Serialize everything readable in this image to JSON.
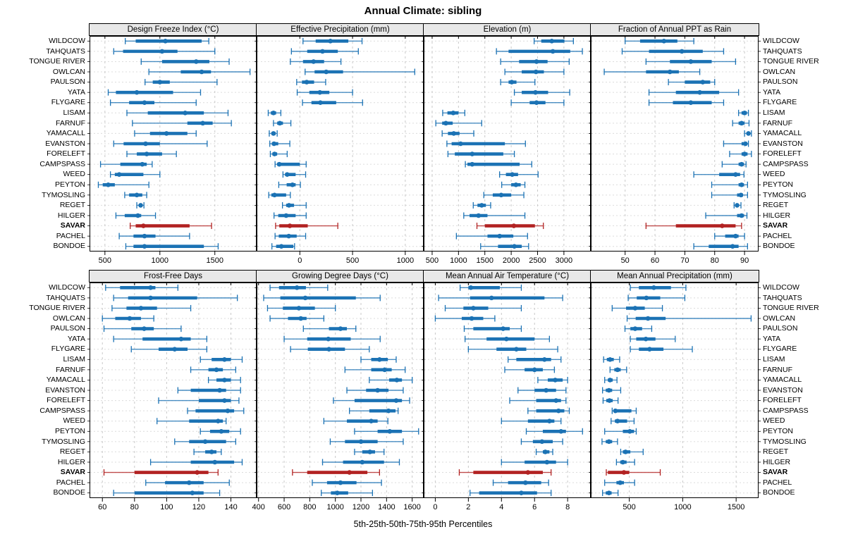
{
  "title": "Annual Climate: sibling",
  "footer": "5th-25th-50th-75th-95th Percentiles",
  "percentiles": [
    5,
    25,
    50,
    75,
    95
  ],
  "highlight_site": "SAVAR",
  "colors": {
    "series": "#1b72b4",
    "highlight": "#b22222",
    "grid": "#c9c9c9",
    "row_guide": "#dcdcdc",
    "header_bg": "#e8e8e8",
    "border": "#000000"
  },
  "sites": [
    "WILDCOW",
    "TAHQUATS",
    "TONGUE RIVER",
    "OWLCAN",
    "PAULSON",
    "YATA",
    "FLYGARE",
    "LISAM",
    "FARNUF",
    "YAMACALL",
    "EVANSTON",
    "FORELEFT",
    "CAMPSPASS",
    "WEED",
    "PEYTON",
    "TYMOSLING",
    "REGET",
    "HILGER",
    "SAVAR",
    "PACHEL",
    "BONDOE"
  ],
  "chart_data": [
    {
      "type": "interval-dotplot",
      "grid_row": "top",
      "title": "Design Freeze Index (°C)",
      "xlim": [
        360,
        1880
      ],
      "ticks": [
        500,
        1000,
        1500
      ],
      "values": [
        [
          685,
          780,
          1050,
          1380,
          1445
        ],
        [
          580,
          665,
          1020,
          1160,
          1500
        ],
        [
          830,
          1020,
          1330,
          1450,
          1630
        ],
        [
          900,
          1190,
          1380,
          1465,
          1820
        ],
        [
          865,
          935,
          1000,
          1090,
          1520
        ],
        [
          530,
          600,
          790,
          1120,
          1370
        ],
        [
          550,
          720,
          860,
          950,
          1330
        ],
        [
          700,
          890,
          1230,
          1400,
          1620
        ],
        [
          750,
          1250,
          1390,
          1480,
          1650
        ],
        [
          770,
          910,
          1060,
          1250,
          1330
        ],
        [
          580,
          670,
          870,
          1000,
          1430
        ],
        [
          700,
          790,
          880,
          1020,
          1150
        ],
        [
          460,
          640,
          840,
          880,
          930
        ],
        [
          550,
          590,
          630,
          850,
          1000
        ],
        [
          440,
          480,
          530,
          590,
          900
        ],
        [
          680,
          720,
          790,
          840,
          880
        ],
        [
          790,
          810,
          825,
          840,
          855
        ],
        [
          600,
          680,
          800,
          830,
          960
        ],
        [
          730,
          780,
          850,
          1270,
          1470
        ],
        [
          630,
          760,
          860,
          960,
          1270
        ],
        [
          690,
          760,
          860,
          1400,
          1530
        ]
      ]
    },
    {
      "type": "interval-dotplot",
      "grid_row": "top",
      "title": "Effective Precipitation (mm)",
      "xlim": [
        -410,
        1175
      ],
      "ticks": [
        0,
        500,
        1000
      ],
      "values": [
        [
          30,
          150,
          290,
          460,
          590
        ],
        [
          -80,
          70,
          215,
          360,
          555
        ],
        [
          -90,
          30,
          130,
          230,
          390
        ],
        [
          50,
          140,
          250,
          410,
          1090
        ],
        [
          -30,
          20,
          65,
          135,
          245
        ],
        [
          -25,
          90,
          190,
          280,
          500
        ],
        [
          25,
          110,
          195,
          345,
          595
        ],
        [
          -300,
          -275,
          -250,
          -225,
          -180
        ],
        [
          -250,
          -215,
          -190,
          -160,
          -85
        ],
        [
          -290,
          -270,
          -250,
          -230,
          -215
        ],
        [
          -285,
          -265,
          -245,
          -205,
          -95
        ],
        [
          -280,
          -260,
          -240,
          -215,
          -120
        ],
        [
          -235,
          -215,
          -195,
          0,
          60
        ],
        [
          -160,
          -140,
          -120,
          -40,
          55
        ],
        [
          -200,
          -125,
          -70,
          -40,
          5
        ],
        [
          -295,
          -270,
          -240,
          -130,
          -90
        ],
        [
          -165,
          -130,
          -103,
          -55,
          60
        ],
        [
          -245,
          -205,
          -130,
          -40,
          60
        ],
        [
          -230,
          -195,
          -95,
          75,
          360
        ],
        [
          -235,
          -200,
          -105,
          -30,
          55
        ],
        [
          -265,
          -225,
          -175,
          -62,
          -50
        ]
      ]
    },
    {
      "type": "interval-dotplot",
      "grid_row": "top",
      "title": "Elevation (m)",
      "xlim": [
        340,
        3510
      ],
      "ticks": [
        500,
        1000,
        1500,
        2000,
        2500,
        3000
      ],
      "values": [
        [
          2435,
          2570,
          2770,
          3010,
          3180
        ],
        [
          1720,
          1950,
          2790,
          3120,
          3350
        ],
        [
          1800,
          2150,
          2480,
          2690,
          3100
        ],
        [
          1880,
          2200,
          2470,
          2620,
          3000
        ],
        [
          1800,
          1950,
          2010,
          2100,
          2450
        ],
        [
          2060,
          2200,
          2460,
          2700,
          3110
        ],
        [
          2000,
          2350,
          2480,
          2650,
          3000
        ],
        [
          700,
          790,
          900,
          1000,
          1120
        ],
        [
          570,
          690,
          760,
          890,
          1440
        ],
        [
          690,
          800,
          910,
          1020,
          1290
        ],
        [
          780,
          870,
          1040,
          1880,
          2270
        ],
        [
          800,
          930,
          1260,
          1850,
          2060
        ],
        [
          1130,
          1170,
          1260,
          2160,
          2390
        ],
        [
          1780,
          1900,
          2020,
          2130,
          2510
        ],
        [
          1820,
          2000,
          2090,
          2180,
          2260
        ],
        [
          1480,
          1650,
          1810,
          2000,
          2240
        ],
        [
          1280,
          1360,
          1440,
          1520,
          1610
        ],
        [
          1100,
          1210,
          1380,
          1550,
          2260
        ],
        [
          1350,
          1500,
          2050,
          2450,
          2610
        ],
        [
          960,
          1550,
          1780,
          2040,
          2310
        ],
        [
          1420,
          1750,
          2060,
          2200,
          2330
        ]
      ]
    },
    {
      "type": "interval-dotplot",
      "grid_row": "top",
      "title": "Fraction of Annual PPT as Rain",
      "xlim": [
        38.5,
        94.7
      ],
      "ticks": [
        50,
        60,
        70,
        80,
        90
      ],
      "values": [
        [
          50,
          55,
          63,
          67.5,
          73
        ],
        [
          49,
          58,
          69,
          76,
          83
        ],
        [
          57,
          65,
          72,
          79,
          87
        ],
        [
          43,
          57,
          65,
          68,
          75
        ],
        [
          64.5,
          70,
          76,
          78.5,
          80
        ],
        [
          58,
          67,
          75,
          81.5,
          88
        ],
        [
          58,
          66,
          72,
          79,
          83
        ],
        [
          88,
          89,
          90,
          90.8,
          91.3
        ],
        [
          86,
          88,
          89,
          90,
          91.5
        ],
        [
          90,
          90.7,
          91.3,
          91.8,
          92.3
        ],
        [
          83,
          89,
          90.3,
          90.8,
          91.3
        ],
        [
          85,
          89,
          90,
          91,
          92.3
        ],
        [
          82.5,
          88,
          89,
          89.8,
          90.5
        ],
        [
          73,
          81.5,
          87,
          88.5,
          89.8
        ],
        [
          79,
          88,
          89,
          89.8,
          91
        ],
        [
          79,
          87.5,
          88.8,
          89.5,
          91
        ],
        [
          86.5,
          87,
          87.5,
          88,
          88.8
        ],
        [
          77,
          87.5,
          89,
          89.8,
          90.8
        ],
        [
          57,
          67,
          82.5,
          87,
          89
        ],
        [
          80,
          83.5,
          87,
          88,
          90
        ],
        [
          73,
          78,
          86,
          88,
          91
        ]
      ]
    },
    {
      "type": "interval-dotplot",
      "grid_row": "bottom",
      "title": "Frost-Free Days",
      "xlim": [
        52,
        156
      ],
      "ticks": [
        60,
        80,
        100,
        120,
        140
      ],
      "values": [
        [
          62,
          71,
          90,
          93,
          107
        ],
        [
          67,
          76,
          90,
          119,
          144
        ],
        [
          66,
          75,
          84,
          94,
          115
        ],
        [
          60,
          68,
          77,
          84,
          92
        ],
        [
          61,
          78,
          86,
          92,
          109
        ],
        [
          67,
          85,
          109,
          115,
          125
        ],
        [
          78,
          95,
          105,
          113,
          125
        ],
        [
          121,
          128,
          136,
          140,
          147
        ],
        [
          115,
          126,
          131,
          135,
          143
        ],
        [
          126,
          131,
          136,
          140,
          146
        ],
        [
          107,
          115,
          133,
          137,
          146
        ],
        [
          95,
          120,
          136,
          140,
          145
        ],
        [
          113,
          118,
          138,
          142,
          148
        ],
        [
          94,
          114,
          132,
          135,
          137
        ],
        [
          121,
          127,
          134,
          139,
          146
        ],
        [
          105,
          114,
          124,
          137,
          143
        ],
        [
          117,
          124,
          128,
          131,
          134
        ],
        [
          90,
          115,
          130,
          142,
          147
        ],
        [
          61,
          80,
          119,
          126,
          132
        ],
        [
          87,
          99,
          114,
          123,
          139
        ],
        [
          67,
          80,
          116,
          123,
          133
        ]
      ]
    },
    {
      "type": "interval-dotplot",
      "grid_row": "bottom",
      "title": "Growing Degree Days (°C)",
      "xlim": [
        385,
        1690
      ],
      "ticks": [
        400,
        600,
        800,
        1000,
        1200,
        1400,
        1600
      ],
      "values": [
        [
          490,
          560,
          700,
          770,
          940
        ],
        [
          440,
          570,
          765,
          1160,
          1350
        ],
        [
          470,
          590,
          715,
          840,
          1000
        ],
        [
          490,
          630,
          730,
          775,
          910
        ],
        [
          750,
          950,
          1040,
          1090,
          1160
        ],
        [
          600,
          780,
          945,
          1120,
          1350
        ],
        [
          650,
          785,
          950,
          1075,
          1265
        ],
        [
          1200,
          1280,
          1345,
          1410,
          1475
        ],
        [
          1075,
          1280,
          1385,
          1440,
          1545
        ],
        [
          1265,
          1420,
          1480,
          1520,
          1600
        ],
        [
          1090,
          1240,
          1330,
          1415,
          1530
        ],
        [
          985,
          1150,
          1475,
          1520,
          1580
        ],
        [
          1110,
          1265,
          1415,
          1470,
          1490
        ],
        [
          910,
          1090,
          1280,
          1330,
          1410
        ],
        [
          1150,
          1330,
          1425,
          1520,
          1650
        ],
        [
          960,
          1075,
          1200,
          1330,
          1530
        ],
        [
          1150,
          1210,
          1270,
          1310,
          1380
        ],
        [
          900,
          1060,
          1210,
          1380,
          1500
        ],
        [
          665,
          780,
          1110,
          1250,
          1345
        ],
        [
          820,
          935,
          1040,
          1165,
          1360
        ],
        [
          890,
          965,
          1015,
          1100,
          1290
        ]
      ]
    },
    {
      "type": "interval-dotplot",
      "grid_row": "bottom",
      "title": "Mean Annual Air Temperature (°C)",
      "xlim": [
        -0.7,
        9.4
      ],
      "ticks": [
        0,
        2,
        4,
        6,
        8
      ],
      "values": [
        [
          1.5,
          2.0,
          2.15,
          3.9,
          5.2
        ],
        [
          0.2,
          2.1,
          3.4,
          6.6,
          7.7
        ],
        [
          0.6,
          1.7,
          2.3,
          3.2,
          5.2
        ],
        [
          0.0,
          1.6,
          2.2,
          2.9,
          3.6
        ],
        [
          1.75,
          2.3,
          4.1,
          4.5,
          5.2
        ],
        [
          1.8,
          3.1,
          4.3,
          6.0,
          6.9
        ],
        [
          2.0,
          3.7,
          4.9,
          5.5,
          7.4
        ],
        [
          4.4,
          4.9,
          6.6,
          7.0,
          7.6
        ],
        [
          4.2,
          5.4,
          6.0,
          6.5,
          7.2
        ],
        [
          6.2,
          6.8,
          7.25,
          7.7,
          8.0
        ],
        [
          5.0,
          6.0,
          6.7,
          7.3,
          7.9
        ],
        [
          4.5,
          6.1,
          7.3,
          7.6,
          7.9
        ],
        [
          5.6,
          6.1,
          7.45,
          7.8,
          8.1
        ],
        [
          4.0,
          5.6,
          6.9,
          7.2,
          7.6
        ],
        [
          5.5,
          6.5,
          7.6,
          7.9,
          8.9
        ],
        [
          5.2,
          5.9,
          6.45,
          7.1,
          7.7
        ],
        [
          6.1,
          6.5,
          6.65,
          6.9,
          7.1
        ],
        [
          4.0,
          5.4,
          6.75,
          7.3,
          8.0
        ],
        [
          1.45,
          2.3,
          5.6,
          6.5,
          7.0
        ],
        [
          3.5,
          4.4,
          5.45,
          6.4,
          6.85
        ],
        [
          2.1,
          2.65,
          5.2,
          6.15,
          7.0
        ]
      ]
    },
    {
      "type": "interval-dotplot",
      "grid_row": "bottom",
      "title": "Mean Annual Precipitation (mm)",
      "xlim": [
        140,
        1710
      ],
      "ticks": [
        500,
        1000,
        1500
      ],
      "values": [
        [
          510,
          590,
          730,
          890,
          1030
        ],
        [
          490,
          570,
          660,
          790,
          1020
        ],
        [
          340,
          470,
          555,
          645,
          810
        ],
        [
          480,
          560,
          675,
          840,
          1640
        ],
        [
          460,
          510,
          555,
          620,
          710
        ],
        [
          510,
          565,
          655,
          745,
          930
        ],
        [
          510,
          590,
          690,
          820,
          1090
        ],
        [
          260,
          290,
          320,
          355,
          410
        ],
        [
          320,
          360,
          390,
          420,
          475
        ],
        [
          270,
          300,
          320,
          345,
          385
        ],
        [
          250,
          280,
          310,
          340,
          420
        ],
        [
          255,
          285,
          315,
          345,
          395
        ],
        [
          340,
          355,
          370,
          520,
          565
        ],
        [
          330,
          365,
          390,
          480,
          545
        ],
        [
          270,
          440,
          505,
          545,
          565
        ],
        [
          245,
          280,
          310,
          340,
          390
        ],
        [
          420,
          440,
          465,
          510,
          630
        ],
        [
          380,
          415,
          440,
          475,
          550
        ],
        [
          285,
          300,
          450,
          500,
          790
        ],
        [
          270,
          380,
          415,
          450,
          550
        ],
        [
          250,
          280,
          310,
          335,
          395
        ]
      ]
    }
  ]
}
